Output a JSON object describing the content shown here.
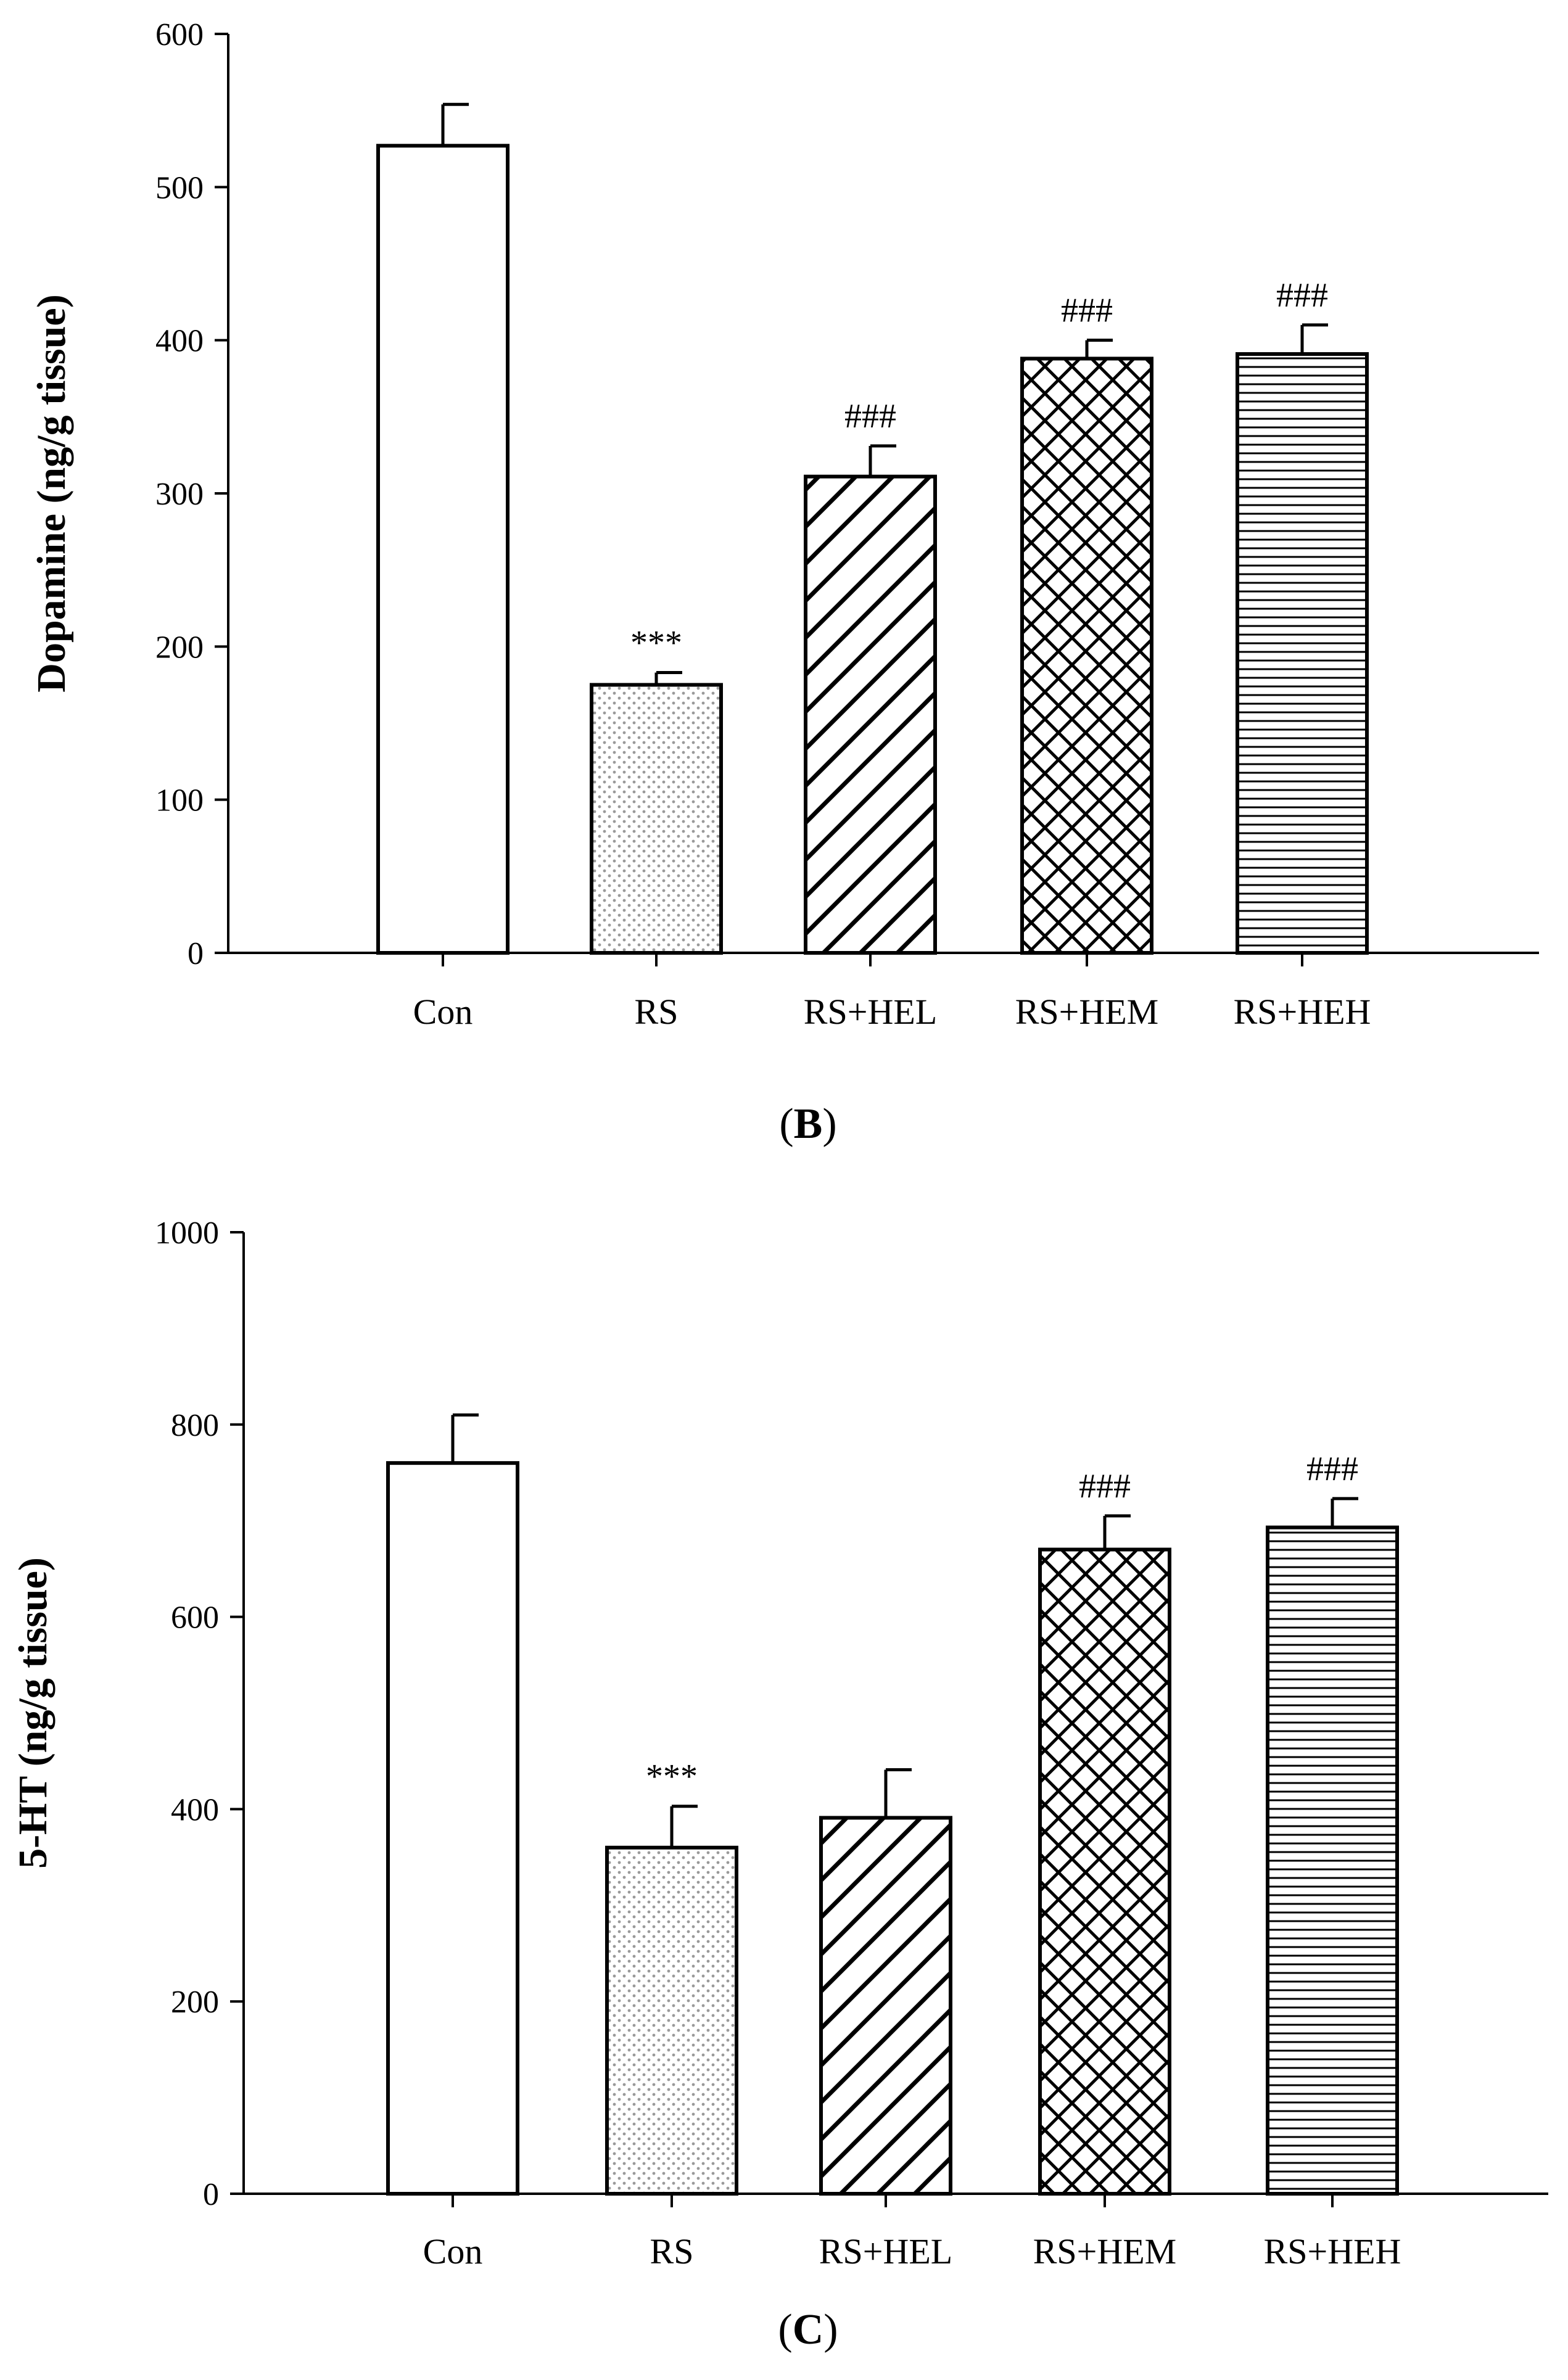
{
  "colors": {
    "ink": "#000000",
    "background": "#ffffff",
    "pattern_fill": "#9a9a9a"
  },
  "chart_data": [
    {
      "type": "bar",
      "panel_label": "B",
      "title": "",
      "xlabel": "",
      "ylabel": "Dopamine (ng/g tissue)",
      "ylim": [
        0,
        600
      ],
      "yticks": [
        0,
        100,
        200,
        300,
        400,
        500,
        600
      ],
      "categories": [
        "Con",
        "RS",
        "RS+HEL",
        "RS+HEM",
        "RS+HEH"
      ],
      "values": [
        527,
        175,
        311,
        388,
        391
      ],
      "errors": [
        27,
        8,
        20,
        12,
        19
      ],
      "patterns": [
        "none",
        "dots",
        "diagonal",
        "crosshatch",
        "horizontal"
      ],
      "annotations": [
        "",
        "***",
        "###",
        "###",
        "###"
      ],
      "grid": false
    },
    {
      "type": "bar",
      "panel_label": "C",
      "title": "",
      "xlabel": "",
      "ylabel": "5-HT (ng/g tissue)",
      "ylim": [
        0,
        1000
      ],
      "yticks": [
        0,
        200,
        400,
        600,
        800,
        1000
      ],
      "categories": [
        "Con",
        "RS",
        "RS+HEL",
        "RS+HEM",
        "RS+HEH"
      ],
      "values": [
        760,
        360,
        391,
        670,
        693
      ],
      "errors": [
        50,
        43,
        50,
        35,
        30
      ],
      "patterns": [
        "none",
        "dots",
        "diagonal",
        "crosshatch",
        "horizontal"
      ],
      "annotations": [
        "",
        "***",
        "",
        "###",
        "###"
      ],
      "grid": false
    }
  ]
}
